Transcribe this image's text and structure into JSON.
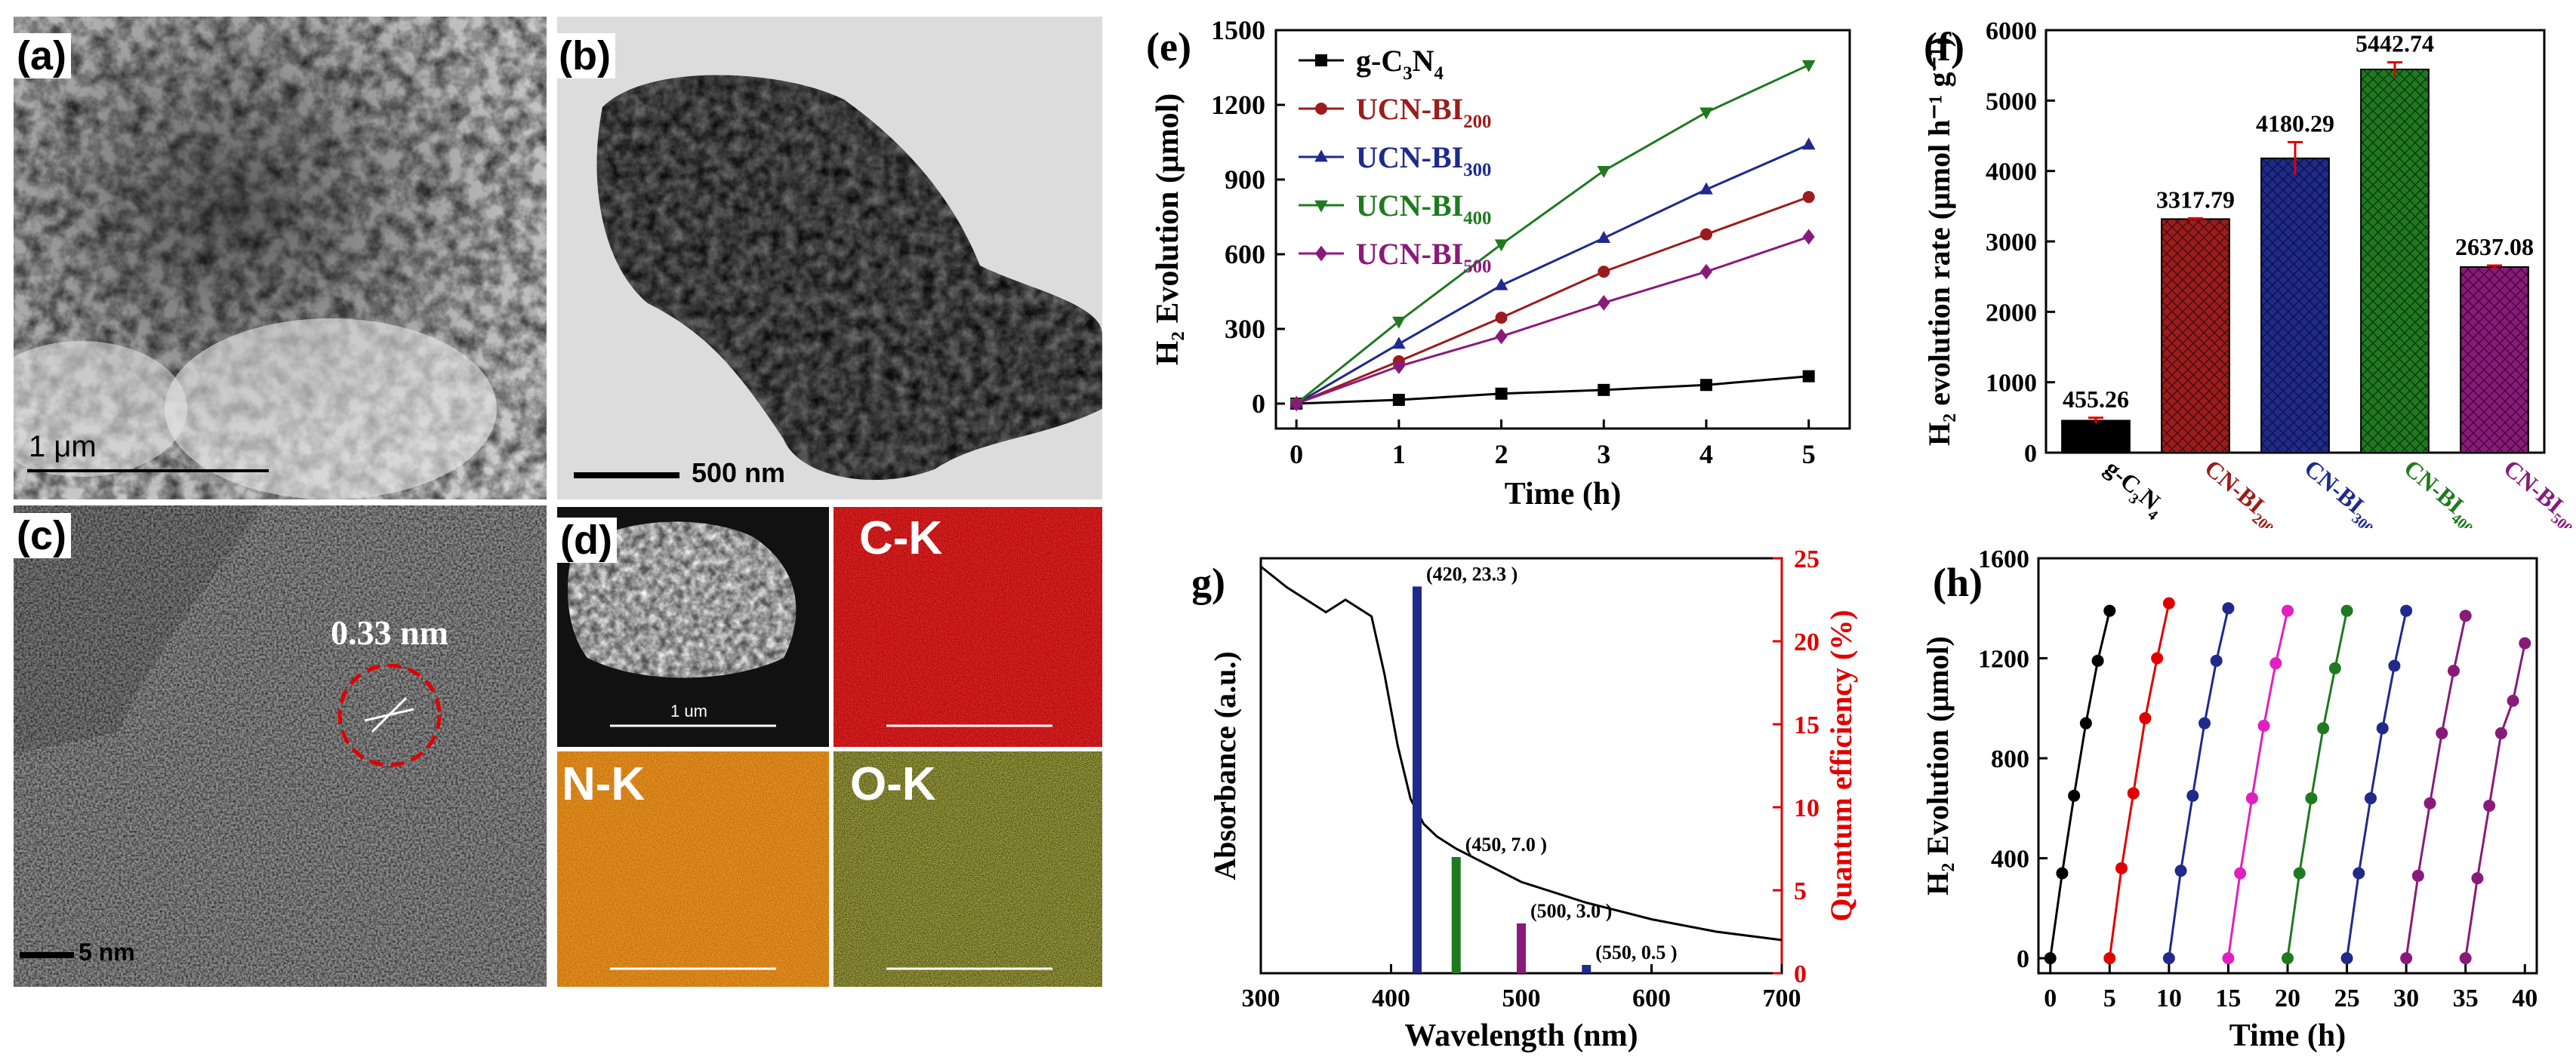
{
  "panels": {
    "a": {
      "label": "(a)",
      "scale": "1 μm"
    },
    "b": {
      "label": "(b)",
      "scale": "500 nm"
    },
    "c": {
      "label": "(c)",
      "scale": "5 nm",
      "lattice": "0.33 nm"
    },
    "d": {
      "label": "(d)",
      "maps": [
        "C-K",
        "N-K",
        "O-K"
      ],
      "scale": "1 um"
    }
  },
  "colors": {
    "black": "#000000",
    "red": "#9b1c1c",
    "blue": "#1f2a8c",
    "green": "#1f7a1f",
    "purple": "#8a1a7a",
    "accent_red": "#e00000",
    "magenta": "#e020c0"
  },
  "chart_data": [
    {
      "id": "e",
      "label": "(e)",
      "type": "line",
      "xlabel": "Time (h)",
      "ylabel": "H₂ Evolution (μmol)",
      "xlim": [
        -0.2,
        5.4
      ],
      "ylim": [
        -100,
        1500
      ],
      "xticks": [
        0,
        1,
        2,
        3,
        4,
        5
      ],
      "yticks": [
        0,
        300,
        600,
        900,
        1200,
        1500
      ],
      "x": [
        0,
        1,
        2,
        3,
        4,
        5
      ],
      "series": [
        {
          "name": "g-C₃N₄",
          "values": [
            0,
            15,
            40,
            55,
            75,
            110
          ],
          "color": "#000000",
          "marker": "square"
        },
        {
          "name": "UCN-BI₂₀₀",
          "values": [
            0,
            170,
            345,
            530,
            680,
            830
          ],
          "color": "#9b1c1c",
          "marker": "circle"
        },
        {
          "name": "UCN-BI₃₀₀",
          "values": [
            0,
            240,
            475,
            665,
            860,
            1040
          ],
          "color": "#1f2a8c",
          "marker": "triangle"
        },
        {
          "name": "UCN-BI₄₀₀",
          "values": [
            0,
            330,
            640,
            935,
            1170,
            1360
          ],
          "color": "#1f7a1f",
          "marker": "triangle-down"
        },
        {
          "name": "UCN-BI₅₀₀",
          "values": [
            0,
            150,
            270,
            405,
            530,
            670
          ],
          "color": "#8a1a7a",
          "marker": "diamond"
        }
      ],
      "legend": [
        {
          "main": "g-C",
          "sub1": "3",
          "mid": "N",
          "sub2": "4"
        },
        {
          "main": "UCN-BI",
          "sub1": "200"
        },
        {
          "main": "UCN-BI",
          "sub1": "300"
        },
        {
          "main": "UCN-BI",
          "sub1": "400"
        },
        {
          "main": "UCN-BI",
          "sub1": "500"
        }
      ]
    },
    {
      "id": "f",
      "label": "(f)",
      "type": "bar",
      "ylabel": "H₂ evolution rate (μmol h⁻¹ g⁻¹)",
      "ylim": [
        0,
        6000
      ],
      "yticks": [
        0,
        1000,
        2000,
        3000,
        4000,
        5000,
        6000
      ],
      "categories": [
        "g-C3N4",
        "CN-BI200",
        "CN-BI300",
        "CN-BI400",
        "CN-BI500"
      ],
      "category_labels": [
        {
          "main": "g-C",
          "sub1": "3",
          "mid": "N",
          "sub2": "4"
        },
        {
          "main": "CN-BI",
          "sub1": "200"
        },
        {
          "main": "CN-BI",
          "sub1": "300"
        },
        {
          "main": "CN-BI",
          "sub1": "400"
        },
        {
          "main": "CN-BI",
          "sub1": "500"
        }
      ],
      "values": [
        455.26,
        3317.79,
        4180.29,
        5442.74,
        2637.08
      ],
      "value_labels": [
        "455.26",
        "3317.79",
        "4180.29",
        "5442.74",
        "2637.08"
      ],
      "errors": [
        40,
        10,
        230,
        100,
        20
      ],
      "colors": [
        "#000000",
        "#9b1c1c",
        "#1f2a8c",
        "#1f7a1f",
        "#8a1a7a"
      ]
    },
    {
      "id": "g",
      "label": "(g)",
      "type": "bar",
      "xlabel": "Wavelength (nm)",
      "ylabel_left": "Absorbance (a.u.)",
      "ylabel_right": "Quantum efficiency (%)",
      "xlim": [
        300,
        700
      ],
      "ylim": [
        0,
        25
      ],
      "xticks": [
        300,
        400,
        500,
        600,
        700
      ],
      "yticks": [
        0,
        5,
        10,
        15,
        20,
        25
      ],
      "bars": [
        {
          "x": 420,
          "value": 23.3,
          "label": "(420, 23.3 )",
          "color": "#1f2a8c"
        },
        {
          "x": 450,
          "value": 7.0,
          "label": "(450, 7.0 )",
          "color": "#1f7a1f"
        },
        {
          "x": 500,
          "value": 3.0,
          "label": "(500, 3.0 )",
          "color": "#8a1a7a"
        },
        {
          "x": 550,
          "value": 0.5,
          "label": "(550, 0.5 )",
          "color": "#1f2a8c"
        }
      ],
      "absorbance_curve": {
        "x": [
          300,
          320,
          335,
          350,
          365,
          375,
          385,
          395,
          405,
          415,
          425,
          435,
          450,
          475,
          500,
          550,
          600,
          650,
          700
        ],
        "y": [
          0.98,
          0.93,
          0.9,
          0.87,
          0.9,
          0.88,
          0.86,
          0.72,
          0.55,
          0.42,
          0.36,
          0.33,
          0.3,
          0.26,
          0.22,
          0.17,
          0.13,
          0.1,
          0.08
        ]
      }
    },
    {
      "id": "h",
      "label": "(h)",
      "type": "scatter",
      "xlabel": "Time (h)",
      "ylabel": "H₂ Evolution (μmol)",
      "xlim": [
        -1,
        41
      ],
      "ylim": [
        -60,
        1600
      ],
      "xticks": [
        0,
        5,
        10,
        15,
        20,
        25,
        30,
        35,
        40
      ],
      "yticks": [
        0,
        400,
        800,
        1200,
        1600
      ],
      "cycles": [
        {
          "color": "#000000",
          "x": [
            0,
            1,
            2,
            3,
            4,
            5
          ],
          "y": [
            0,
            340,
            650,
            940,
            1190,
            1390
          ]
        },
        {
          "color": "#e00000",
          "x": [
            5,
            6,
            7,
            8,
            9,
            10
          ],
          "y": [
            0,
            360,
            660,
            960,
            1200,
            1420
          ]
        },
        {
          "color": "#1f2a8c",
          "x": [
            10,
            11,
            12,
            13,
            14,
            15
          ],
          "y": [
            0,
            350,
            650,
            940,
            1190,
            1400
          ]
        },
        {
          "color": "#e020c0",
          "x": [
            15,
            16,
            17,
            18,
            19,
            20
          ],
          "y": [
            0,
            340,
            640,
            930,
            1180,
            1390
          ]
        },
        {
          "color": "#1f7a1f",
          "x": [
            20,
            21,
            22,
            23,
            24,
            25
          ],
          "y": [
            0,
            340,
            640,
            920,
            1160,
            1390
          ]
        },
        {
          "color": "#1f2a8c",
          "x": [
            25,
            26,
            27,
            28,
            29,
            30
          ],
          "y": [
            0,
            340,
            640,
            920,
            1170,
            1390
          ]
        },
        {
          "color": "#8a1a7a",
          "x": [
            30,
            31,
            32,
            33,
            34,
            35
          ],
          "y": [
            0,
            330,
            620,
            900,
            1150,
            1370
          ]
        },
        {
          "color": "#8a1a7a",
          "x": [
            35,
            36,
            37,
            38,
            39,
            40
          ],
          "y": [
            0,
            320,
            610,
            900,
            1030,
            1260
          ]
        }
      ]
    }
  ]
}
